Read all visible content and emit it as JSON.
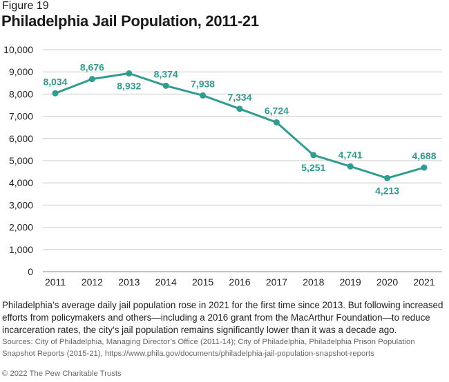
{
  "figure_label": "Figure 19",
  "title": "Philadelphia Jail Population, 2011-21",
  "caption": "Philadelphia’s average daily jail population rose in 2021 for the first time since 2013. But following increased efforts from policymakers and others—including a 2016 grant from the MacArthur Foundation—to reduce incarceration rates, the city’s jail population remains significantly lower than it was a decade ago.",
  "sources": "Sources: City of Philadelphia, Managing Director’s Office (2011-14); City of Philadelphia, Philadelphia Prison Population Snapshot Reports (2015-21), https://www.phila.gov/documents/philadelphia-jail-population-snapshot-reports",
  "copyright": "© 2022 The Pew Charitable Trusts",
  "chart_data": {
    "type": "line",
    "title": "Philadelphia Jail Population, 2011-21",
    "x": [
      "2011",
      "2012",
      "2013",
      "2014",
      "2015",
      "2016",
      "2017",
      "2018",
      "2019",
      "2020",
      "2021"
    ],
    "values": [
      8034,
      8676,
      8932,
      8374,
      7938,
      7334,
      6724,
      5251,
      4741,
      4213,
      4688
    ],
    "data_labels": [
      "8,034",
      "8,676",
      "8,932",
      "8,374",
      "7,938",
      "7,334",
      "6,724",
      "5,251",
      "4,741",
      "4,213",
      "4,688"
    ],
    "label_positions": [
      "above",
      "above",
      "below",
      "above",
      "above",
      "above",
      "above",
      "below",
      "above",
      "below",
      "above"
    ],
    "ylim": [
      0,
      10000
    ],
    "yticks": [
      0,
      1000,
      2000,
      3000,
      4000,
      5000,
      6000,
      7000,
      8000,
      9000,
      10000
    ],
    "ytick_labels": [
      "0",
      "1,000",
      "2,000",
      "3,000",
      "4,000",
      "5,000",
      "6,000",
      "7,000",
      "8,000",
      "9,000",
      "10,000"
    ],
    "grid": true,
    "color": "#2e9c8e",
    "grid_color": "#c8c8c8"
  }
}
